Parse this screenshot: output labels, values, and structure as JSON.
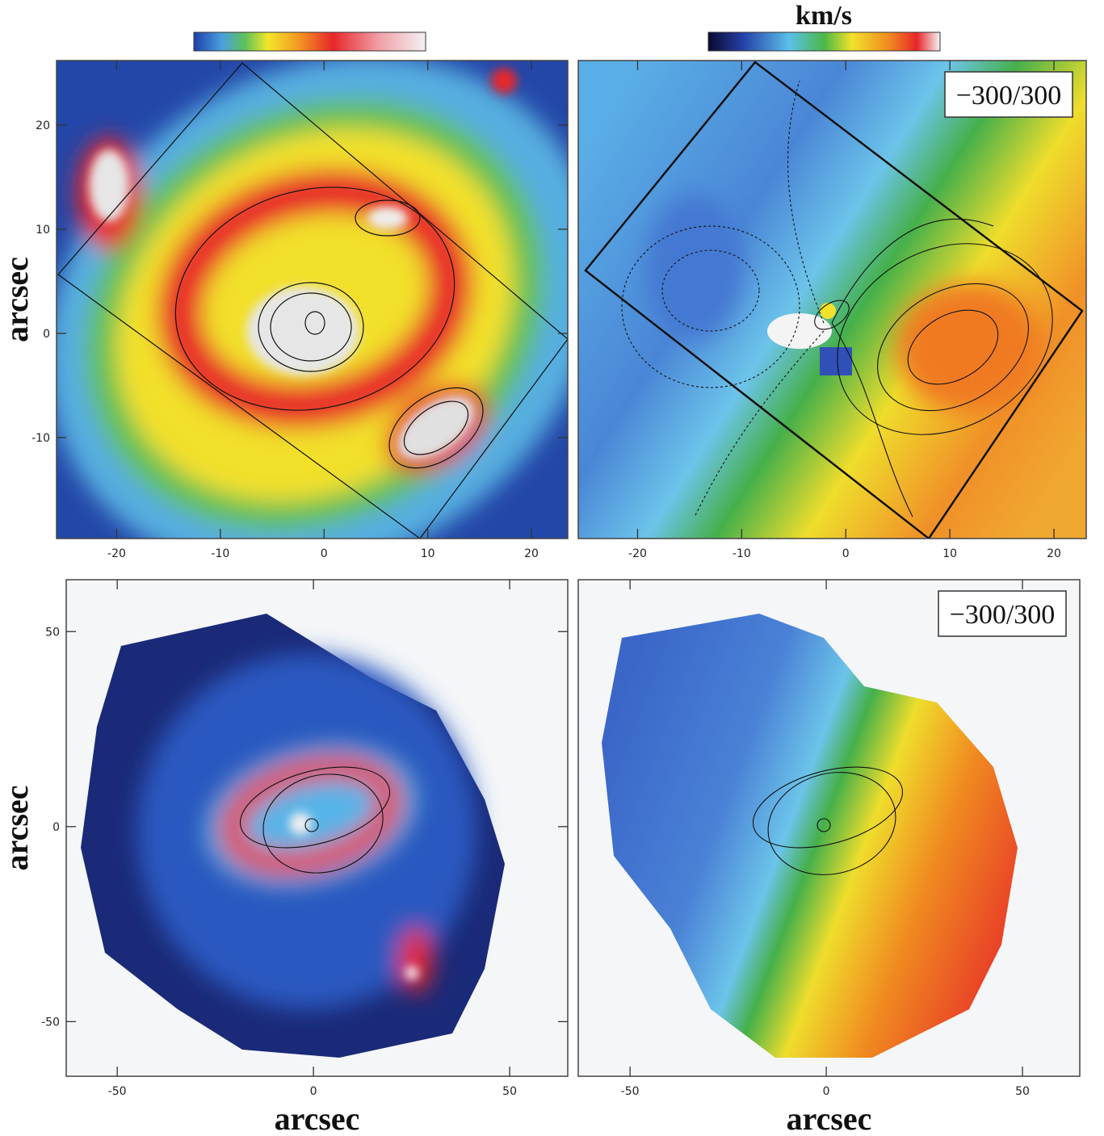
{
  "colorbar_label": "km/s",
  "panels": [
    {
      "xlim": [
        -25.8,
        23.5
      ],
      "ylim": [
        -19.7,
        26.2
      ],
      "xticks": [
        -20,
        -10,
        0,
        10,
        20
      ],
      "yticks": [
        20,
        10,
        0,
        -10
      ],
      "ylabel": "arcsec"
    },
    {
      "xlim": [
        -25.7,
        23.1
      ],
      "ylim": [
        -19.7,
        26.2
      ],
      "xticks": [
        -20,
        -10,
        0,
        10,
        20
      ],
      "box_label": "−300/300"
    },
    {
      "xlim": [
        -63,
        64.8
      ],
      "ylim": [
        -64,
        63.3
      ],
      "xticks": [
        -50,
        0,
        50
      ],
      "yticks": [
        50,
        0,
        -50
      ],
      "xlabel": "arcsec",
      "ylabel": "arcsec"
    },
    {
      "xlim": [
        -63.2,
        64.6
      ],
      "ylim": [
        -64,
        63.3
      ],
      "xticks": [
        -50,
        0,
        50
      ],
      "xlabel": "arcsec",
      "box_label": "−300/300"
    }
  ]
}
